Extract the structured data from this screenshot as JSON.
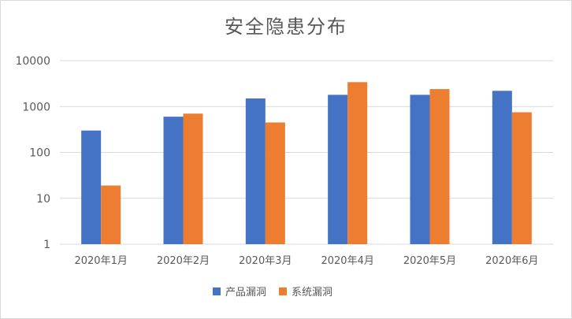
{
  "chart_data": {
    "type": "bar",
    "title": "安全隐患分布",
    "xlabel": "",
    "ylabel": "",
    "yscale": "log",
    "ylim": [
      1,
      10000
    ],
    "yticks": [
      "1",
      "10",
      "100",
      "1000",
      "10000"
    ],
    "grid": true,
    "legend_position": "bottom",
    "categories": [
      "2020年1月",
      "2020年2月",
      "2020年3月",
      "2020年4月",
      "2020年5月",
      "2020年6月"
    ],
    "series": [
      {
        "name": "产品漏洞",
        "color": "#4472C4",
        "values": [
          300,
          600,
          1500,
          1800,
          1800,
          2200
        ]
      },
      {
        "name": "系统漏洞",
        "color": "#ED7D31",
        "values": [
          19,
          700,
          450,
          3400,
          2400,
          750
        ]
      }
    ]
  }
}
